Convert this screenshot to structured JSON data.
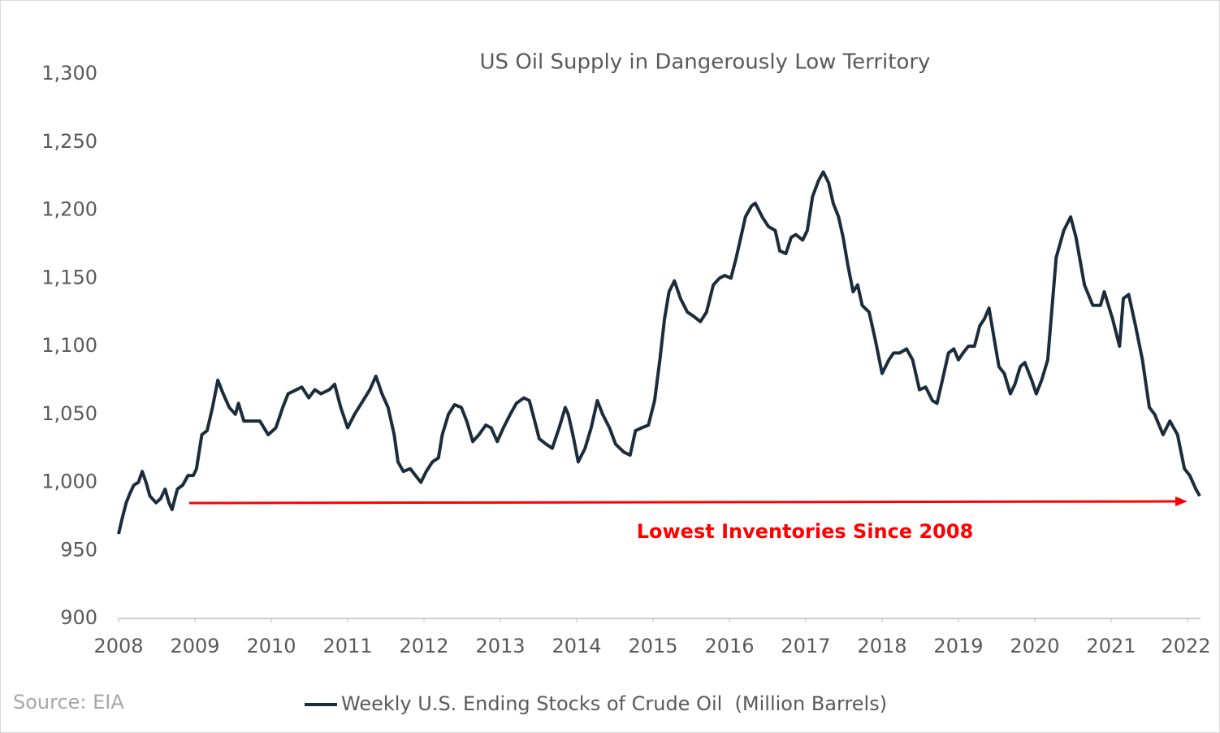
{
  "chart_data": {
    "type": "line",
    "title": "US Oil Supply in Dangerously Low Territory",
    "source": "Source: EIA",
    "annotation": "Lowest Inventories Since 2008",
    "xlim": [
      2008,
      2022.16
    ],
    "xticks": [
      2008,
      2009,
      2010,
      2011,
      2012,
      2013,
      2014,
      2015,
      2016,
      2017,
      2018,
      2019,
      2020,
      2021,
      2022
    ],
    "ylim": [
      900,
      1300
    ],
    "yticks": [
      {
        "value": 900,
        "label": "900"
      },
      {
        "value": 950,
        "label": "950"
      },
      {
        "value": 1000,
        "label": "1,000"
      },
      {
        "value": 1050,
        "label": "1,050"
      },
      {
        "value": 1100,
        "label": "1,100"
      },
      {
        "value": 1150,
        "label": "1,150"
      },
      {
        "value": 1200,
        "label": "1,200"
      },
      {
        "value": 1250,
        "label": "1,250"
      },
      {
        "value": 1300,
        "label": "1,300"
      }
    ],
    "grid": false,
    "legend": "bottom",
    "x": [
      2008.0,
      2008.04,
      2008.1,
      2008.15,
      2008.2,
      2008.26,
      2008.31,
      2008.36,
      2008.41,
      2008.49,
      2008.55,
      2008.61,
      2008.66,
      2008.7,
      2008.77,
      2008.84,
      2008.91,
      2008.98,
      2009.02,
      2009.09,
      2009.16,
      2009.23,
      2009.3,
      2009.37,
      2009.45,
      2009.53,
      2009.57,
      2009.64,
      2009.74,
      2009.85,
      2009.96,
      2010.06,
      2010.15,
      2010.22,
      2010.33,
      2010.4,
      2010.49,
      2010.57,
      2010.65,
      2010.76,
      2010.83,
      2010.91,
      2011.0,
      2011.09,
      2011.18,
      2011.29,
      2011.37,
      2011.45,
      2011.53,
      2011.61,
      2011.66,
      2011.73,
      2011.82,
      2011.89,
      2011.96,
      2012.03,
      2012.11,
      2012.19,
      2012.24,
      2012.32,
      2012.4,
      2012.49,
      2012.56,
      2012.64,
      2012.72,
      2012.81,
      2012.88,
      2012.96,
      2013.04,
      2013.13,
      2013.21,
      2013.31,
      2013.38,
      2013.45,
      2013.51,
      2013.6,
      2013.68,
      2013.77,
      2013.85,
      2013.89,
      2013.95,
      2014.02,
      2014.11,
      2014.19,
      2014.27,
      2014.34,
      2014.43,
      2014.51,
      2014.62,
      2014.7,
      2014.77,
      2014.85,
      2014.94,
      2015.02,
      2015.09,
      2015.15,
      2015.21,
      2015.28,
      2015.36,
      2015.45,
      2015.53,
      2015.62,
      2015.7,
      2015.79,
      2015.87,
      2015.94,
      2016.02,
      2016.09,
      2016.15,
      2016.21,
      2016.29,
      2016.34,
      2016.43,
      2016.51,
      2016.6,
      2016.66,
      2016.74,
      2016.81,
      2016.87,
      2016.96,
      2017.02,
      2017.09,
      2017.17,
      2017.23,
      2017.3,
      2017.36,
      2017.43,
      2017.49,
      2017.55,
      2017.62,
      2017.68,
      2017.74,
      2017.83,
      2017.91,
      2018.0,
      2018.09,
      2018.15,
      2018.23,
      2018.32,
      2018.4,
      2018.49,
      2018.57,
      2018.66,
      2018.72,
      2018.79,
      2018.87,
      2018.94,
      2019.0,
      2019.06,
      2019.13,
      2019.21,
      2019.28,
      2019.34,
      2019.4,
      2019.47,
      2019.53,
      2019.6,
      2019.68,
      2019.74,
      2019.81,
      2019.87,
      2019.96,
      2020.02,
      2020.09,
      2020.17,
      2020.28,
      2020.38,
      2020.47,
      2020.54,
      2020.65,
      2020.76,
      2020.86,
      2020.91,
      2021.02,
      2021.11,
      2021.16,
      2021.23,
      2021.32,
      2021.41,
      2021.5,
      2021.57,
      2021.68,
      2021.77,
      2021.87,
      2021.96,
      2022.03,
      2022.11,
      2022.16
    ],
    "series": [
      {
        "name": "Weekly U.S. Ending Stocks of Crude Oil  (Million Barrels)",
        "color": "#1b2d3c",
        "values": [
          962,
          972,
          985,
          992,
          998,
          1000,
          1008,
          1000,
          990,
          985,
          988,
          995,
          985,
          980,
          995,
          998,
          1005,
          1005,
          1010,
          1035,
          1038,
          1055,
          1075,
          1065,
          1055,
          1050,
          1058,
          1045,
          1045,
          1045,
          1035,
          1040,
          1055,
          1065,
          1068,
          1070,
          1062,
          1068,
          1065,
          1068,
          1072,
          1055,
          1040,
          1050,
          1058,
          1068,
          1078,
          1065,
          1055,
          1035,
          1015,
          1008,
          1010,
          1005,
          1000,
          1008,
          1015,
          1018,
          1035,
          1050,
          1057,
          1055,
          1045,
          1030,
          1035,
          1042,
          1040,
          1030,
          1040,
          1050,
          1058,
          1062,
          1060,
          1045,
          1032,
          1028,
          1025,
          1040,
          1055,
          1050,
          1035,
          1015,
          1025,
          1040,
          1060,
          1050,
          1040,
          1028,
          1022,
          1020,
          1038,
          1040,
          1042,
          1060,
          1090,
          1120,
          1140,
          1148,
          1135,
          1125,
          1122,
          1118,
          1125,
          1145,
          1150,
          1152,
          1150,
          1165,
          1180,
          1195,
          1203,
          1205,
          1195,
          1188,
          1185,
          1170,
          1168,
          1180,
          1182,
          1178,
          1185,
          1210,
          1222,
          1228,
          1220,
          1205,
          1195,
          1180,
          1160,
          1140,
          1145,
          1130,
          1125,
          1105,
          1080,
          1090,
          1095,
          1095,
          1098,
          1090,
          1068,
          1070,
          1060,
          1058,
          1075,
          1095,
          1098,
          1090,
          1095,
          1100,
          1100,
          1115,
          1120,
          1128,
          1105,
          1085,
          1080,
          1065,
          1072,
          1085,
          1088,
          1075,
          1065,
          1075,
          1090,
          1165,
          1185,
          1195,
          1180,
          1145,
          1130,
          1130,
          1140,
          1120,
          1100,
          1135,
          1138,
          1115,
          1090,
          1055,
          1050,
          1035,
          1045,
          1035,
          1010,
          1005,
          995,
          990
        ]
      }
    ]
  }
}
